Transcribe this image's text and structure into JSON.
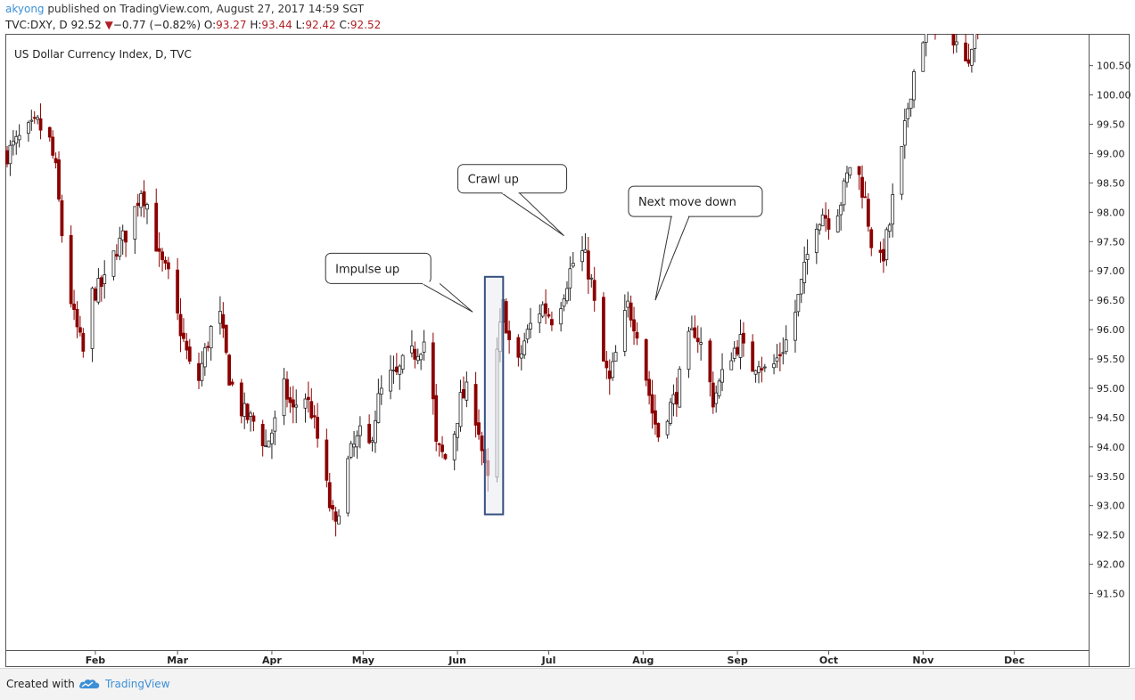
{
  "header": {
    "user": "akyong",
    "published": "published on TradingView.com, August 27, 2017 14:59 SGT",
    "symbol": "TVC:DXY, D",
    "last": "92.52",
    "change": "−0.77 (−0.82%)",
    "o_label": "O:",
    "o_value": "93.27",
    "h_label": "H:",
    "h_value": "93.44",
    "l_label": "L:",
    "l_value": "92.42",
    "c_label": "C:",
    "c_value": "92.52"
  },
  "footer": {
    "created_with": "Created with",
    "brand": "TradingView"
  },
  "colors": {
    "up": "#222222",
    "down": "#8b0000",
    "highlight_fill": "#e9edf4",
    "highlight_stroke": "#35507f",
    "link": "#3d8fd6"
  },
  "chart_data": {
    "type": "candlestick",
    "title": "US Dollar Currency Index, D, TVC",
    "ylim": [
      91.0,
      101.0
    ],
    "y_ticks": [
      "91.50",
      "92.00",
      "92.50",
      "93.00",
      "93.50",
      "94.00",
      "94.50",
      "95.00",
      "95.50",
      "96.00",
      "96.50",
      "97.00",
      "97.50",
      "98.00",
      "98.50",
      "99.00",
      "99.50",
      "100.00",
      "100.50"
    ],
    "x_labels": [
      "Feb",
      "Mar",
      "Apr",
      "May",
      "Jun",
      "Jul",
      "Aug",
      "Sep",
      "Oct",
      "Nov",
      "Dec"
    ],
    "x_label_day": [
      29,
      56,
      87,
      117,
      148,
      178,
      209,
      240,
      270,
      301,
      331
    ],
    "day_range": [
      0,
      356
    ],
    "closes": [
      {
        "d": 0,
        "c": 99.0
      },
      {
        "d": 5,
        "c": 99.3
      },
      {
        "d": 10,
        "c": 99.5
      },
      {
        "d": 14,
        "c": 99.2
      },
      {
        "d": 16,
        "c": 98.7
      },
      {
        "d": 19,
        "c": 97.1
      },
      {
        "d": 22,
        "c": 96.2
      },
      {
        "d": 25,
        "c": 95.6
      },
      {
        "d": 28,
        "c": 96.6
      },
      {
        "d": 32,
        "c": 96.8
      },
      {
        "d": 36,
        "c": 97.4
      },
      {
        "d": 40,
        "c": 97.7
      },
      {
        "d": 44,
        "c": 98.4
      },
      {
        "d": 47,
        "c": 98.0
      },
      {
        "d": 50,
        "c": 97.2
      },
      {
        "d": 53,
        "c": 96.9
      },
      {
        "d": 56,
        "c": 96.2
      },
      {
        "d": 59,
        "c": 95.6
      },
      {
        "d": 62,
        "c": 94.9
      },
      {
        "d": 64,
        "c": 95.4
      },
      {
        "d": 67,
        "c": 96.0
      },
      {
        "d": 70,
        "c": 96.2
      },
      {
        "d": 73,
        "c": 95.2
      },
      {
        "d": 76,
        "c": 94.7
      },
      {
        "d": 79,
        "c": 94.5
      },
      {
        "d": 82,
        "c": 94.4
      },
      {
        "d": 85,
        "c": 94.0
      },
      {
        "d": 88,
        "c": 94.4
      },
      {
        "d": 91,
        "c": 95.0
      },
      {
        "d": 94,
        "c": 94.6
      },
      {
        "d": 97,
        "c": 95.0
      },
      {
        "d": 100,
        "c": 94.6
      },
      {
        "d": 103,
        "c": 93.9
      },
      {
        "d": 106,
        "c": 93.0
      },
      {
        "d": 108,
        "c": 92.6
      },
      {
        "d": 110,
        "c": 93.4
      },
      {
        "d": 113,
        "c": 93.9
      },
      {
        "d": 116,
        "c": 94.2
      },
      {
        "d": 119,
        "c": 94.0
      },
      {
        "d": 122,
        "c": 94.8
      },
      {
        "d": 125,
        "c": 95.2
      },
      {
        "d": 128,
        "c": 95.2
      },
      {
        "d": 131,
        "c": 95.5
      },
      {
        "d": 134,
        "c": 95.6
      },
      {
        "d": 137,
        "c": 95.8
      },
      {
        "d": 139,
        "c": 95.5
      },
      {
        "d": 141,
        "c": 94.0
      },
      {
        "d": 144,
        "c": 93.8
      },
      {
        "d": 146,
        "c": 94.0
      },
      {
        "d": 149,
        "c": 94.8
      },
      {
        "d": 152,
        "c": 95.0
      },
      {
        "d": 155,
        "c": 94.3
      },
      {
        "d": 157,
        "c": 93.6
      },
      {
        "d": 159,
        "c": 93.2
      },
      {
        "d": 161,
        "c": 95.6
      },
      {
        "d": 163,
        "c": 96.4
      },
      {
        "d": 165,
        "c": 95.8
      },
      {
        "d": 167,
        "c": 95.2
      },
      {
        "d": 170,
        "c": 95.8
      },
      {
        "d": 173,
        "c": 96.2
      },
      {
        "d": 176,
        "c": 96.4
      },
      {
        "d": 179,
        "c": 96.2
      },
      {
        "d": 182,
        "c": 96.5
      },
      {
        "d": 185,
        "c": 97.0
      },
      {
        "d": 188,
        "c": 97.4
      },
      {
        "d": 190,
        "c": 97.2
      },
      {
        "d": 192,
        "c": 96.8
      },
      {
        "d": 195,
        "c": 95.6
      },
      {
        "d": 198,
        "c": 95.1
      },
      {
        "d": 201,
        "c": 95.8
      },
      {
        "d": 204,
        "c": 96.4
      },
      {
        "d": 207,
        "c": 96.0
      },
      {
        "d": 209,
        "c": 95.5
      },
      {
        "d": 212,
        "c": 94.6
      },
      {
        "d": 214,
        "c": 94.2
      },
      {
        "d": 217,
        "c": 94.6
      },
      {
        "d": 220,
        "c": 94.9
      },
      {
        "d": 223,
        "c": 95.7
      },
      {
        "d": 226,
        "c": 96.0
      },
      {
        "d": 229,
        "c": 95.6
      },
      {
        "d": 232,
        "c": 94.8
      },
      {
        "d": 235,
        "c": 95.2
      },
      {
        "d": 238,
        "c": 95.6
      },
      {
        "d": 241,
        "c": 95.8
      },
      {
        "d": 244,
        "c": 95.3
      },
      {
        "d": 247,
        "c": 95.5
      },
      {
        "d": 250,
        "c": 95.2
      },
      {
        "d": 253,
        "c": 95.5
      },
      {
        "d": 256,
        "c": 95.8
      },
      {
        "d": 259,
        "c": 96.3
      },
      {
        "d": 262,
        "c": 97.0
      },
      {
        "d": 265,
        "c": 97.8
      },
      {
        "d": 268,
        "c": 98.0
      },
      {
        "d": 271,
        "c": 97.8
      },
      {
        "d": 274,
        "c": 98.2
      },
      {
        "d": 277,
        "c": 98.8
      },
      {
        "d": 280,
        "c": 98.6
      },
      {
        "d": 282,
        "c": 98.2
      },
      {
        "d": 284,
        "c": 97.5
      },
      {
        "d": 286,
        "c": 97.0
      },
      {
        "d": 288,
        "c": 97.3
      },
      {
        "d": 290,
        "c": 97.8
      },
      {
        "d": 292,
        "c": 98.6
      },
      {
        "d": 294,
        "c": 99.0
      },
      {
        "d": 296,
        "c": 99.8
      },
      {
        "d": 298,
        "c": 100.4
      },
      {
        "d": 300,
        "c": 100.8
      },
      {
        "d": 302,
        "c": 101.2
      },
      {
        "d": 304,
        "c": 101.3
      },
      {
        "d": 306,
        "c": 101.2
      },
      {
        "d": 308,
        "c": 101.3
      },
      {
        "d": 310,
        "c": 101.1
      },
      {
        "d": 312,
        "c": 100.9
      },
      {
        "d": 314,
        "c": 100.3
      },
      {
        "d": 316,
        "c": 100.7
      },
      {
        "d": 318,
        "c": 101.2
      },
      {
        "d": 321,
        "c": 101.3
      }
    ],
    "highlight_day_range": [
      157,
      163
    ],
    "highlight_y_range": [
      92.85,
      96.9
    ],
    "annotations": [
      {
        "text": "Impulse up",
        "tip_d": 153,
        "tip_y": 96.3
      },
      {
        "text": "Crawl up",
        "tip_d": 183,
        "tip_y": 97.6
      },
      {
        "text": "Next move down",
        "tip_d": 213,
        "tip_y": 96.5
      }
    ]
  }
}
